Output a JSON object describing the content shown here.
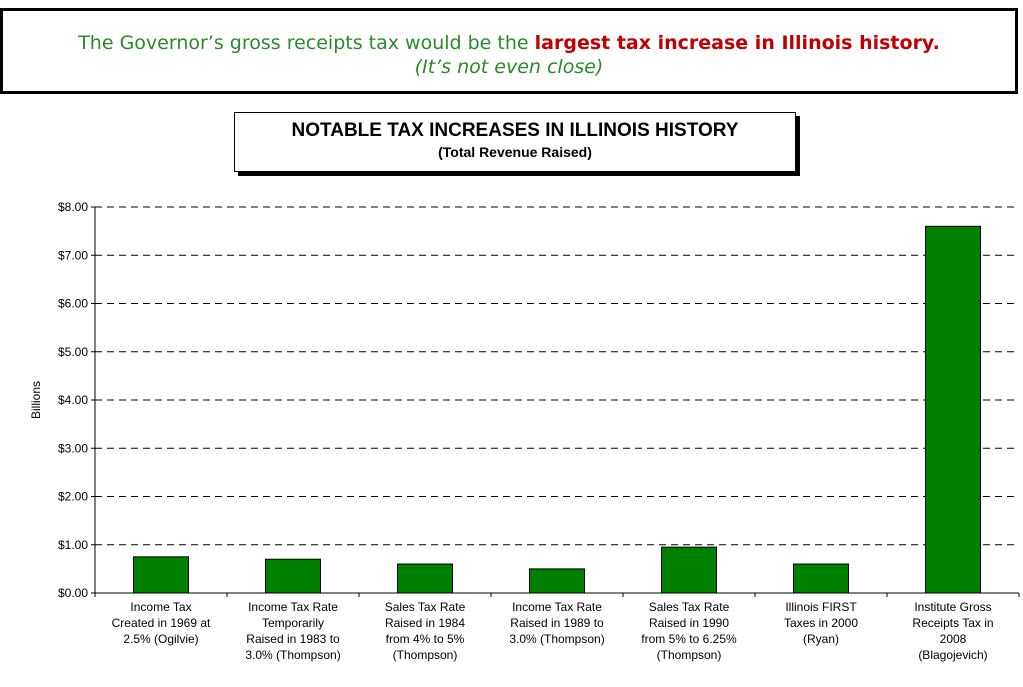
{
  "banner": {
    "text_normal": "The Governor’s gross receipts tax would be the ",
    "text_bold": "largest tax increase in Illinois history.",
    "subtitle": "(It’s not even close)"
  },
  "chart_data": {
    "type": "bar",
    "title": "NOTABLE TAX INCREASES IN ILLINOIS HISTORY",
    "subtitle": "(Total Revenue Raised)",
    "xlabel": "",
    "ylabel": "Billions",
    "ylim": [
      0,
      8
    ],
    "yticks": [
      "$0.00",
      "$1.00",
      "$2.00",
      "$3.00",
      "$4.00",
      "$5.00",
      "$6.00",
      "$7.00",
      "$8.00"
    ],
    "grid": true,
    "bar_color": "#008000",
    "categories": [
      [
        "Income Tax",
        "Created in 1969 at",
        "2.5% (Ogilvie)"
      ],
      [
        "Income Tax Rate",
        "Temporarily",
        "Raised in 1983 to",
        "3.0% (Thompson)"
      ],
      [
        "Sales Tax Rate",
        "Raised in 1984",
        "from 4% to 5%",
        "(Thompson)"
      ],
      [
        "Income Tax Rate",
        "Raised in 1989 to",
        "3.0% (Thompson)"
      ],
      [
        "Sales Tax Rate",
        "Raised in 1990",
        "from 5% to 6.25%",
        "(Thompson)"
      ],
      [
        "Illinois FIRST",
        "Taxes in 2000",
        "(Ryan)"
      ],
      [
        "Institute Gross",
        "Receipts Tax in",
        "2008",
        "(Blagojevich)"
      ]
    ],
    "values": [
      0.75,
      0.7,
      0.6,
      0.5,
      0.95,
      0.6,
      7.6
    ]
  }
}
